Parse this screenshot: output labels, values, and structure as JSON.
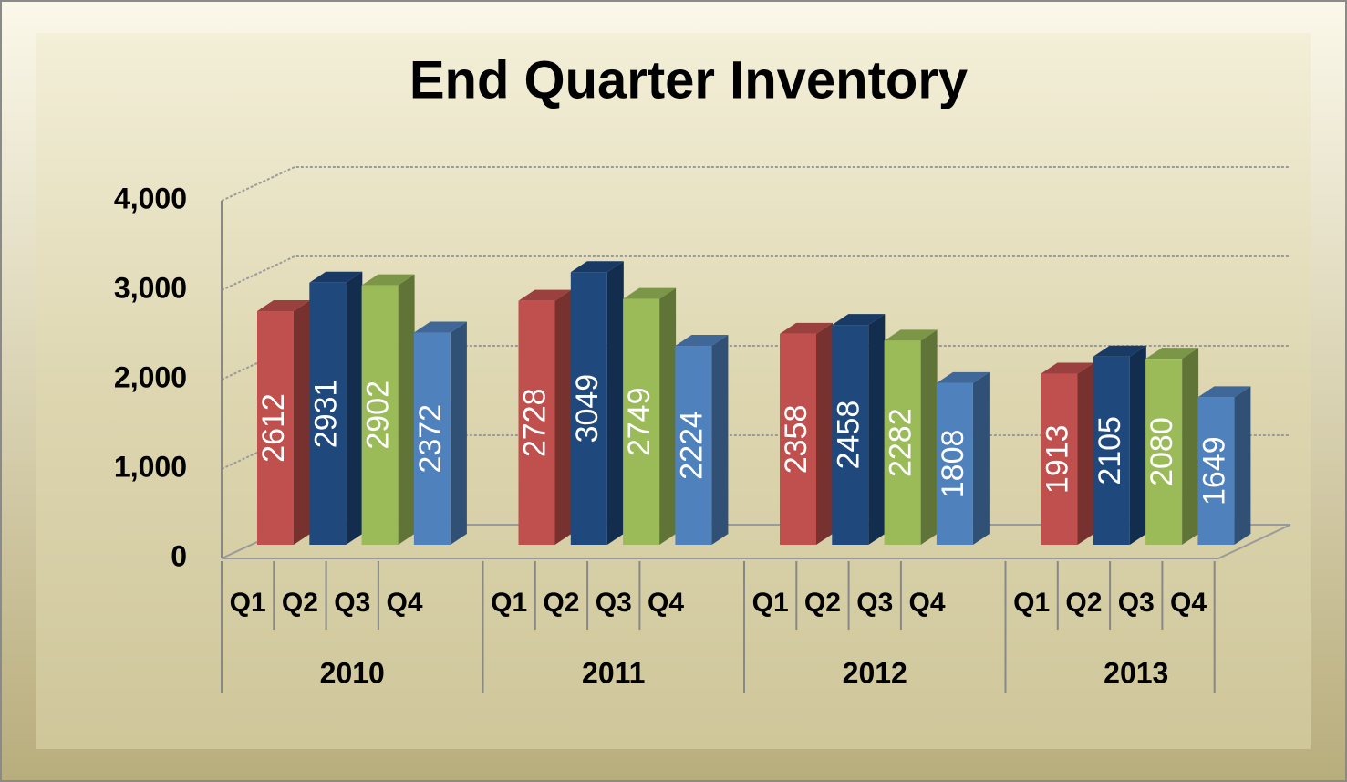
{
  "chart_data": {
    "type": "bar3d",
    "title": "End Quarter Inventory",
    "groups": [
      {
        "name": "2010",
        "categories": [
          "Q1",
          "Q2",
          "Q3",
          "Q4"
        ],
        "values": [
          2612,
          2931,
          2902,
          2372
        ]
      },
      {
        "name": "2011",
        "categories": [
          "Q1",
          "Q2",
          "Q3",
          "Q4"
        ],
        "values": [
          2728,
          3049,
          2749,
          2224
        ]
      },
      {
        "name": "2012",
        "categories": [
          "Q1",
          "Q2",
          "Q3",
          "Q4"
        ],
        "values": [
          2358,
          2458,
          2282,
          1808
        ]
      },
      {
        "name": "2013",
        "categories": [
          "Q1",
          "Q2",
          "Q3",
          "Q4"
        ],
        "values": [
          1913,
          2105,
          2080,
          1649
        ]
      }
    ],
    "colors": [
      "#c0504d",
      "#1f497d",
      "#9bbb59",
      "#4f81bd"
    ],
    "ylim": [
      0,
      4000
    ],
    "yticks": [
      0,
      {
        "value": 1000,
        "label": "1,000"
      },
      {
        "value": 2000,
        "label": "2,000"
      },
      {
        "value": 3000,
        "label": "3,000"
      },
      {
        "value": 4000,
        "label": "4,000"
      }
    ],
    "grid": true
  }
}
